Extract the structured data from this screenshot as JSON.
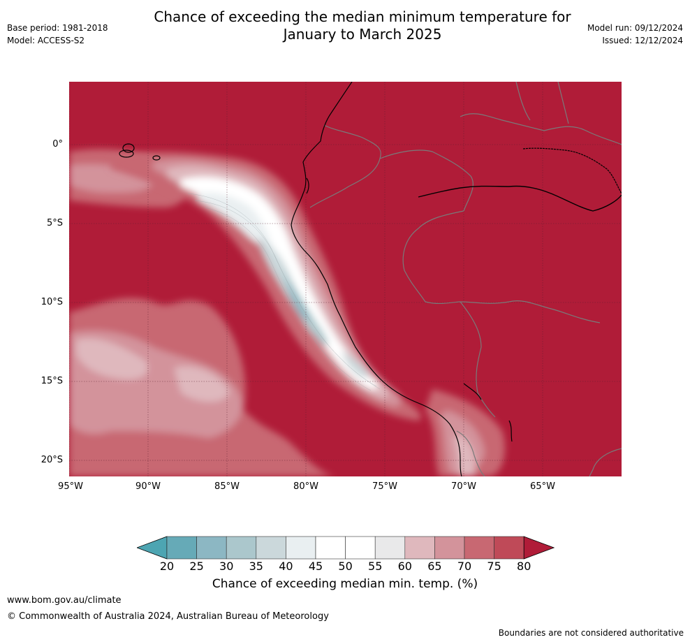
{
  "title": {
    "line1": "Chance of exceeding the median minimum temperature for",
    "line2": "January to March 2025"
  },
  "meta_left": {
    "base_period": "Base period: 1981-2018",
    "model": "Model: ACCESS-S2"
  },
  "meta_right": {
    "model_run": "Model run: 09/12/2024",
    "issued": "Issued: 12/12/2024"
  },
  "map": {
    "lat_ticks": [
      "0°",
      "5°S",
      "10°S",
      "15°S",
      "20°S"
    ],
    "lon_ticks": [
      "95°W",
      "90°W",
      "85°W",
      "80°W",
      "75°W",
      "70°W",
      "65°W"
    ]
  },
  "colorbar": {
    "title": "Chance of exceeding median min. temp. (%)",
    "labels": [
      "20",
      "25",
      "30",
      "35",
      "40",
      "45",
      "50",
      "55",
      "60",
      "65",
      "70",
      "75",
      "80"
    ],
    "colors": [
      "#66aab7",
      "#8cb7c3",
      "#abc7cc",
      "#cbd8db",
      "#e9eff1",
      "#ffffff",
      "#ffffff",
      "#e9e9ea",
      "#dfb8bd",
      "#d3939b",
      "#c86872",
      "#bf4a58",
      "#b01c38"
    ],
    "under_color": "#4da5b2",
    "over_color": "#b01c38"
  },
  "footer": {
    "url": "www.bom.gov.au/climate",
    "copyright": "© Commonwealth of Australia 2024, Australian Bureau of Meteorology",
    "note": "Boundaries are not considered authoritative"
  }
}
